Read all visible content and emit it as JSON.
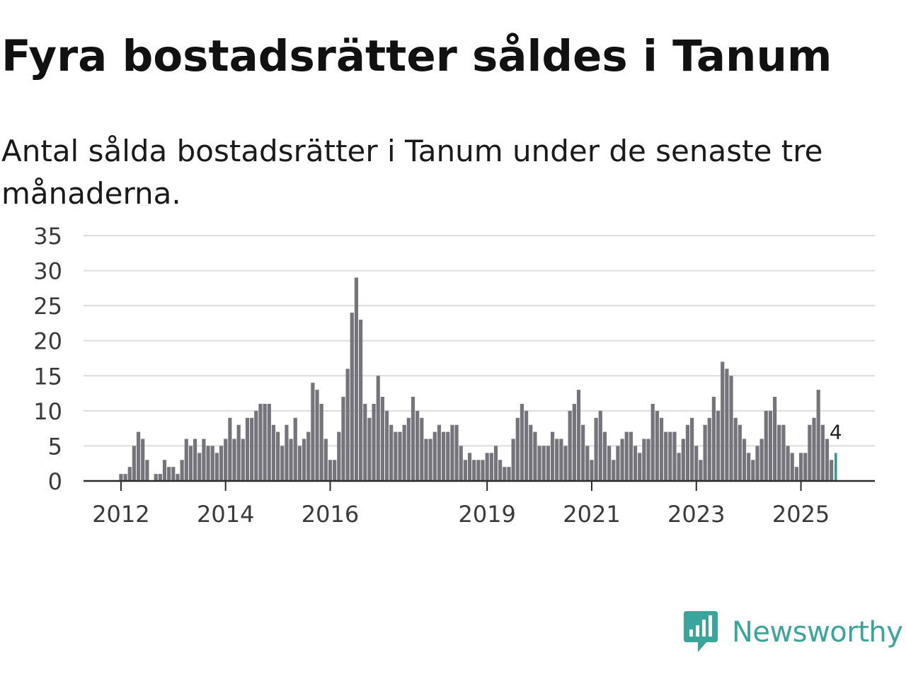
{
  "header": {
    "title": "Fyra bostadsrätter såldes i Tanum",
    "subtitle": "Antal sålda bostadsrätter i Tanum under de senaste tre månaderna."
  },
  "brand": {
    "name": "Newsworthy",
    "color": "#3aa59a",
    "icon": "newsworthy-logo-icon"
  },
  "chart_data": {
    "type": "bar",
    "title": "Fyra bostadsrätter såldes i Tanum",
    "subtitle": "Antal sålda bostadsrätter i Tanum under de senaste tre månaderna.",
    "xlabel": "",
    "ylabel": "",
    "ylim": [
      0,
      35
    ],
    "yticks": [
      0,
      5,
      10,
      15,
      20,
      25,
      30,
      35
    ],
    "x_start": {
      "year": 2011,
      "month": 11
    },
    "xticks": [
      {
        "label": "2012",
        "index": 2
      },
      {
        "label": "2014",
        "index": 26
      },
      {
        "label": "2016",
        "index": 50
      },
      {
        "label": "2019",
        "index": 86
      },
      {
        "label": "2021",
        "index": 110
      },
      {
        "label": "2023",
        "index": 134
      },
      {
        "label": "2025",
        "index": 158
      }
    ],
    "grid": true,
    "bar_color": "#75747a",
    "highlight_color": "#1f9e90",
    "highlight_index": 166,
    "highlight_label": "4",
    "values": [
      0,
      0,
      1,
      1,
      2,
      5,
      7,
      6,
      3,
      0,
      1,
      1,
      3,
      2,
      2,
      1,
      3,
      6,
      5,
      6,
      4,
      6,
      5,
      5,
      4,
      5,
      6,
      9,
      6,
      8,
      6,
      9,
      9,
      10,
      11,
      11,
      11,
      8,
      7,
      5,
      8,
      6,
      9,
      5,
      6,
      7,
      14,
      13,
      11,
      6,
      3,
      3,
      7,
      12,
      16,
      24,
      29,
      23,
      11,
      9,
      11,
      15,
      12,
      10,
      8,
      7,
      7,
      8,
      9,
      12,
      10,
      9,
      6,
      6,
      7,
      8,
      7,
      7,
      8,
      8,
      5,
      3,
      4,
      3,
      3,
      3,
      4,
      4,
      5,
      3,
      2,
      2,
      6,
      9,
      11,
      10,
      8,
      7,
      5,
      5,
      5,
      7,
      6,
      6,
      5,
      10,
      11,
      13,
      8,
      5,
      3,
      9,
      10,
      7,
      5,
      3,
      5,
      6,
      7,
      7,
      5,
      4,
      6,
      6,
      11,
      10,
      9,
      7,
      7,
      7,
      4,
      6,
      8,
      9,
      5,
      3,
      8,
      9,
      12,
      10,
      17,
      16,
      15,
      9,
      8,
      6,
      4,
      3,
      5,
      6,
      10,
      10,
      12,
      8,
      8,
      5,
      4,
      2,
      4,
      4,
      8,
      9,
      13,
      8,
      6,
      3,
      4
    ]
  }
}
